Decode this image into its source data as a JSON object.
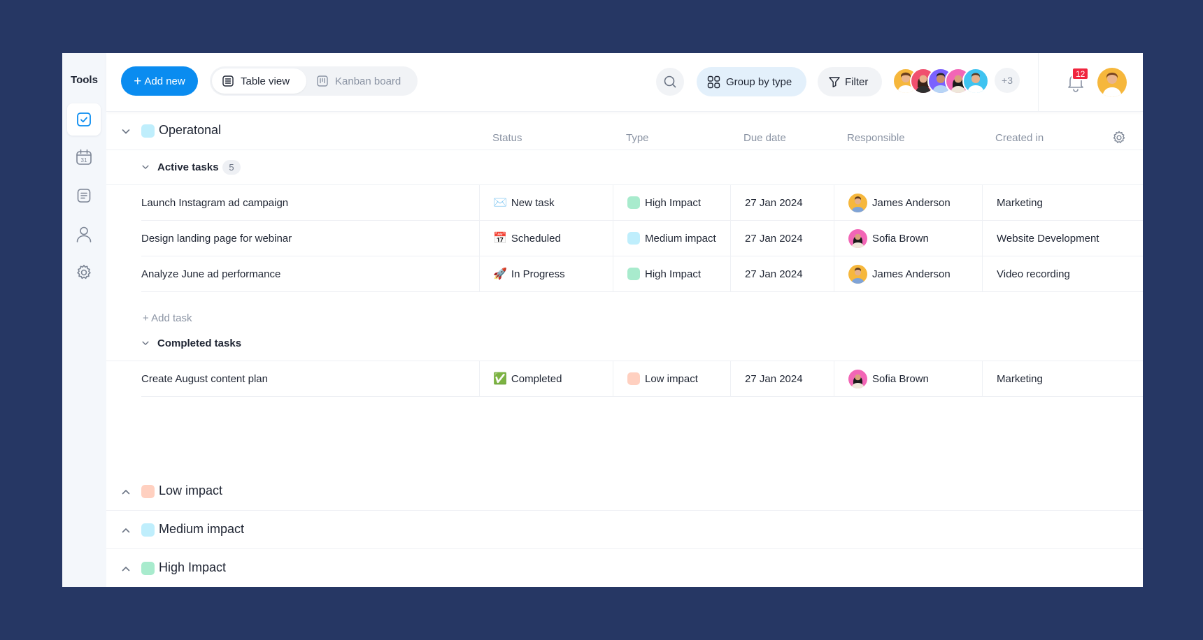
{
  "sidebar": {
    "title": "Tools",
    "items": [
      {
        "icon": "checkbox-icon",
        "active": true
      },
      {
        "icon": "calendar-icon",
        "label": "31"
      },
      {
        "icon": "document-icon"
      },
      {
        "icon": "user-icon"
      },
      {
        "icon": "gear-icon"
      }
    ]
  },
  "toolbar": {
    "add_new_label": "Add new",
    "views": [
      "Table view",
      "Kanban board"
    ],
    "group_label": "Group by type",
    "filter_label": "Filter",
    "more_members": "+3",
    "notifications_count": "12"
  },
  "table": {
    "columns": [
      "Status",
      "Type",
      "Due date",
      "Responsible",
      "Created in"
    ]
  },
  "groups": {
    "operational": {
      "title": "Operatonal",
      "color": "#bfeefc",
      "active_label": "Active tasks",
      "active_count": "5",
      "add_task_label": "Add task",
      "completed_label": "Completed tasks",
      "active_rows": [
        {
          "name": "Launch Instagram ad campaign",
          "status_emoji": "✉️",
          "status": "New task",
          "type": "High Impact",
          "type_color": "#a8ebcd",
          "due": "27 Jan 2024",
          "responsible": "James Anderson",
          "created": "Marketing"
        },
        {
          "name": "Design landing page for webinar",
          "status_emoji": "📅",
          "status": "Scheduled",
          "type": "Medium impact",
          "type_color": "#bfeefc",
          "due": "27 Jan 2024",
          "responsible": "Sofia Brown",
          "created": "Website Development"
        },
        {
          "name": "Analyze June ad performance",
          "status_emoji": "🚀",
          "status": "In Progress",
          "type": "High Impact",
          "type_color": "#a8ebcd",
          "due": "27 Jan 2024",
          "responsible": "James Anderson",
          "created": "Video recording"
        }
      ],
      "completed_rows": [
        {
          "name": "Create August content plan",
          "status_emoji": "✅",
          "status": "Completed",
          "type": "Low impact",
          "type_color": "#ffd0c0",
          "due": "27 Jan 2024",
          "responsible": "Sofia Brown",
          "created": "Marketing"
        }
      ]
    },
    "collapsed": [
      {
        "title": "Low impact",
        "color": "#ffd0c0"
      },
      {
        "title": "Medium impact",
        "color": "#bfeefc"
      },
      {
        "title": "High Impact",
        "color": "#a8ebcd"
      }
    ]
  }
}
